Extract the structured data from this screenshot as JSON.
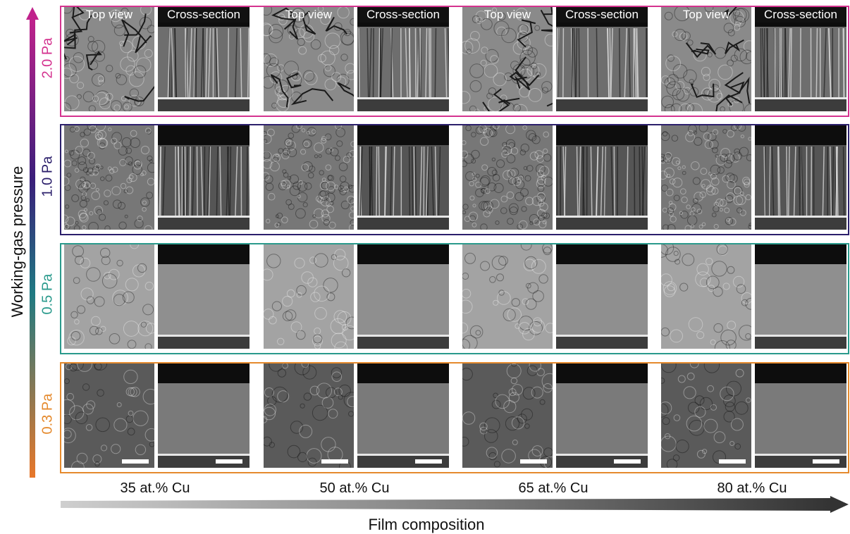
{
  "y_axis_label": "Working-gas pressure",
  "x_axis_label": "Film composition",
  "panel_labels": {
    "top_view": "Top view",
    "cross_section": "Cross-section"
  },
  "colors": {
    "p20": "#d4338f",
    "p10": "#2b1f6b",
    "p05": "#2a9a8c",
    "p03": "#e58a2d",
    "arrow_top": "#c0228c",
    "arrow_bottom": "#e8772a"
  },
  "pressures": [
    {
      "label": "2.0 Pa",
      "color": "#d4338f",
      "texture": "cracked"
    },
    {
      "label": "1.0 Pa",
      "color": "#2b1f6b",
      "texture": "granular"
    },
    {
      "label": "0.5 Pa",
      "color": "#2a9a8c",
      "texture": "smooth"
    },
    {
      "label": "0.3 Pa",
      "color": "#e58a2d",
      "texture": "dense"
    }
  ],
  "compositions": [
    "35 at.% Cu",
    "50 at.% Cu",
    "65 at.% Cu",
    "80 at.% Cu"
  ]
}
